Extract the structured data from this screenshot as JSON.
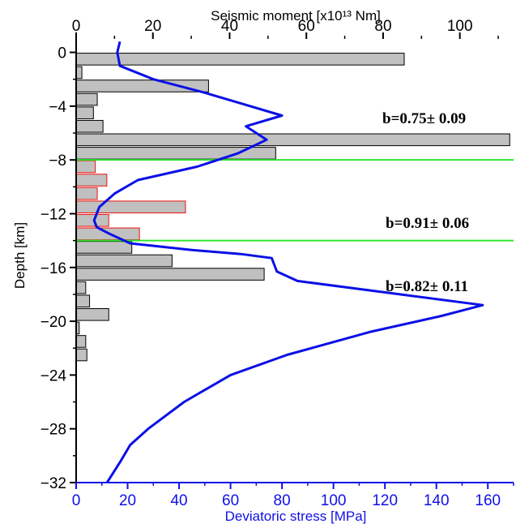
{
  "chart_data": {
    "type": "bar",
    "orientation": "horizontal",
    "ylabel": "Depth [km]",
    "top_xlabel": "Seismic moment [x10¹³ Nm]",
    "bottom_xlabel": "Deviatoric stress [MPa]",
    "ylim": [
      -32,
      1
    ],
    "top_xlim": [
      0,
      114
    ],
    "bottom_xlim": [
      0,
      170
    ],
    "y_ticks": [
      "0",
      "−4",
      "−8",
      "−12",
      "−16",
      "−20",
      "−24",
      "−28",
      "−32"
    ],
    "y_tick_values": [
      0,
      -4,
      -8,
      -12,
      -16,
      -20,
      -24,
      -28,
      -32
    ],
    "top_ticks": [
      "0",
      "20",
      "40",
      "60",
      "80",
      "100"
    ],
    "top_tick_values": [
      0,
      20,
      40,
      60,
      80,
      100
    ],
    "bottom_ticks": [
      "0",
      "20",
      "40",
      "60",
      "80",
      "100",
      "120",
      "140",
      "160"
    ],
    "bottom_tick_values": [
      0,
      20,
      40,
      60,
      80,
      100,
      120,
      140,
      160
    ],
    "bars": {
      "depth_top": [
        0,
        -1,
        -2,
        -3,
        -4,
        -5,
        -6,
        -7,
        -8,
        -9,
        -10,
        -11,
        -12,
        -13,
        -14,
        -15,
        -16,
        -17,
        -18,
        -19,
        -20,
        -21,
        -22
      ],
      "moment": [
        85.5,
        1.5,
        34.5,
        5.5,
        4.5,
        7,
        113,
        52,
        5,
        8,
        5.5,
        28.5,
        8.5,
        16.5,
        14.5,
        25,
        49,
        2.5,
        3.5,
        8.5,
        0.8,
        2.5,
        2.8
      ],
      "highlighted": [
        false,
        false,
        false,
        false,
        false,
        false,
        false,
        false,
        true,
        true,
        true,
        true,
        true,
        true,
        false,
        false,
        false,
        false,
        false,
        false,
        false,
        false,
        false
      ]
    },
    "stress_profile": {
      "name": "Deviatoric stress",
      "depth": [
        0.8,
        0,
        -1,
        -2,
        -3,
        -4.7,
        -5.5,
        -6.5,
        -7.5,
        -8.5,
        -9.5,
        -10.5,
        -11.5,
        -12.5,
        -13,
        -13.5,
        -14.2,
        -14.7,
        -15,
        -15.3,
        -15.8,
        -16.3,
        -17,
        -18.8,
        -19.6,
        -20.8,
        -22.5,
        -24,
        -26,
        -28,
        -29.2,
        -30.5,
        -32
      ],
      "stress": [
        17,
        16,
        17,
        30,
        50,
        80,
        66,
        74,
        63,
        47,
        24,
        15,
        9,
        7,
        8,
        13,
        21,
        45,
        64,
        76,
        77,
        78,
        86,
        158,
        142,
        114,
        82,
        60,
        42,
        28,
        21,
        17,
        12
      ]
    },
    "boundaries_depth": [
      -8,
      -14
    ],
    "annotations": [
      "b=0.75± 0.09",
      "b=0.91± 0.06",
      "b=0.82± 0.11"
    ],
    "annotation_depths": [
      -4,
      -12.2,
      -17.1
    ],
    "grid": false
  },
  "colors": {
    "bar_fill": "#c0c0c0",
    "bar_edge_default": "#000000",
    "bar_edge_highlight": "#e8140f",
    "stress_line": "#0a10e6",
    "boundary": "#2ee62e",
    "bottom_axis": "#1010e6"
  }
}
